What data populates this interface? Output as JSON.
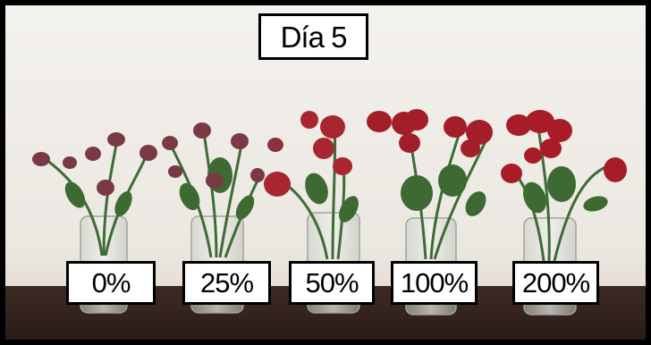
{
  "title": "Día 5",
  "labels": [
    "0%",
    "25%",
    "50%",
    "100%",
    "200%"
  ]
}
